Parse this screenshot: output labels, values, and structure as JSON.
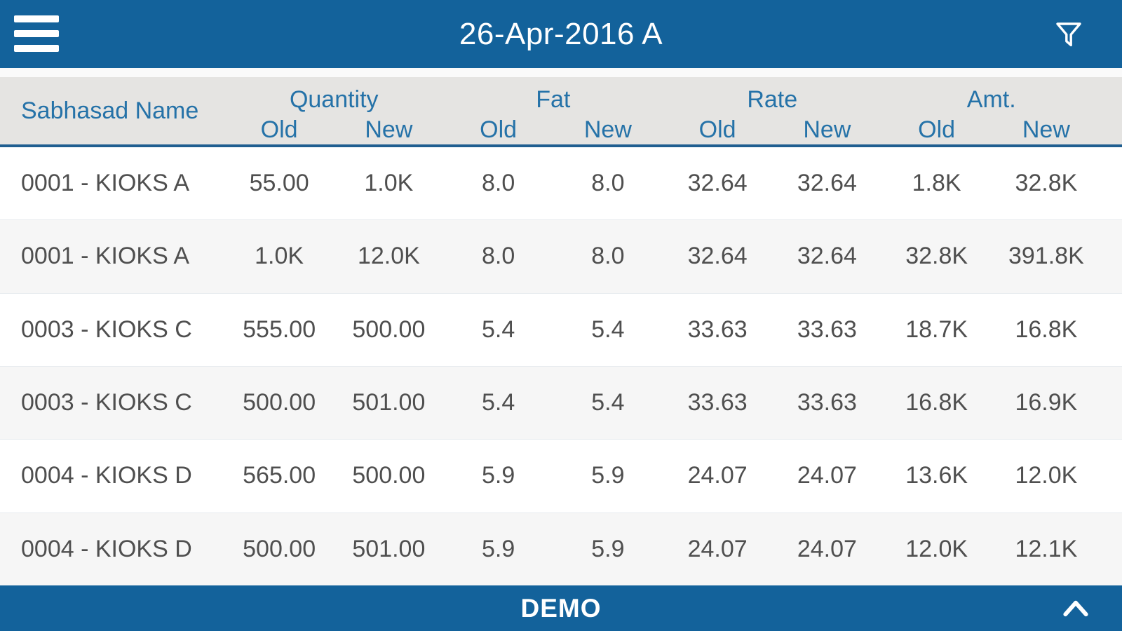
{
  "app_bar": {
    "title": "26-Apr-2016 A"
  },
  "table": {
    "name_header": "Sabhasad Name",
    "groups": [
      "Quantity",
      "Fat",
      "Rate",
      "Amt."
    ],
    "sub_headers": [
      "Old",
      "New"
    ],
    "rows": [
      [
        "0001 - KIOKS A",
        "55.00",
        "1.0K",
        "8.0",
        "8.0",
        "32.64",
        "32.64",
        "1.8K",
        "32.8K"
      ],
      [
        "0001 - KIOKS A",
        "1.0K",
        "12.0K",
        "8.0",
        "8.0",
        "32.64",
        "32.64",
        "32.8K",
        "391.8K"
      ],
      [
        "0003 - KIOKS C",
        "555.00",
        "500.00",
        "5.4",
        "5.4",
        "33.63",
        "33.63",
        "18.7K",
        "16.8K"
      ],
      [
        "0003 - KIOKS C",
        "500.00",
        "501.00",
        "5.4",
        "5.4",
        "33.63",
        "33.63",
        "16.8K",
        "16.9K"
      ],
      [
        "0004 - KIOKS D",
        "565.00",
        "500.00",
        "5.9",
        "5.9",
        "24.07",
        "24.07",
        "13.6K",
        "12.0K"
      ],
      [
        "0004 - KIOKS D",
        "500.00",
        "501.00",
        "5.9",
        "5.9",
        "24.07",
        "24.07",
        "12.0K",
        "12.1K"
      ]
    ]
  },
  "footer": {
    "label": "DEMO"
  },
  "icons": {
    "menu": "hamburger-icon",
    "filter": "filter-funnel-icon",
    "collapse": "chevron-up-icon"
  },
  "colors": {
    "bar_blue": "#13629b",
    "header_background": "#e5e4e2",
    "header_text_blue": "#2572a8",
    "header_border_blue": "#1f5e90",
    "row_text": "#4f4f4f",
    "row_alt_background": "#f6f6f6",
    "bar_text": "#ffffff"
  }
}
